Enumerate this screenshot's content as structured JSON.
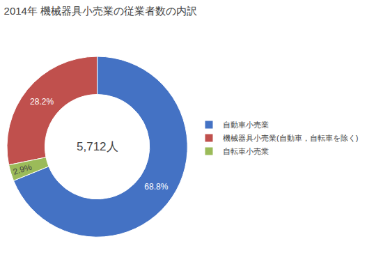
{
  "chart_data": {
    "type": "donut",
    "title": "2014年 機械器具小売業の従業者数の内訳",
    "center_text": "5,712人",
    "categories": [
      "自動車小売業",
      "機械器具小売業(自動車，自転車を除く)",
      "自転車小売業"
    ],
    "values": [
      68.8,
      28.2,
      2.9
    ],
    "value_labels": [
      "68.8%",
      "28.2%",
      "2.9%"
    ],
    "colors": [
      "#4472C4",
      "#C0504D",
      "#9BBB59"
    ],
    "data_labels": true,
    "legend": "right"
  }
}
